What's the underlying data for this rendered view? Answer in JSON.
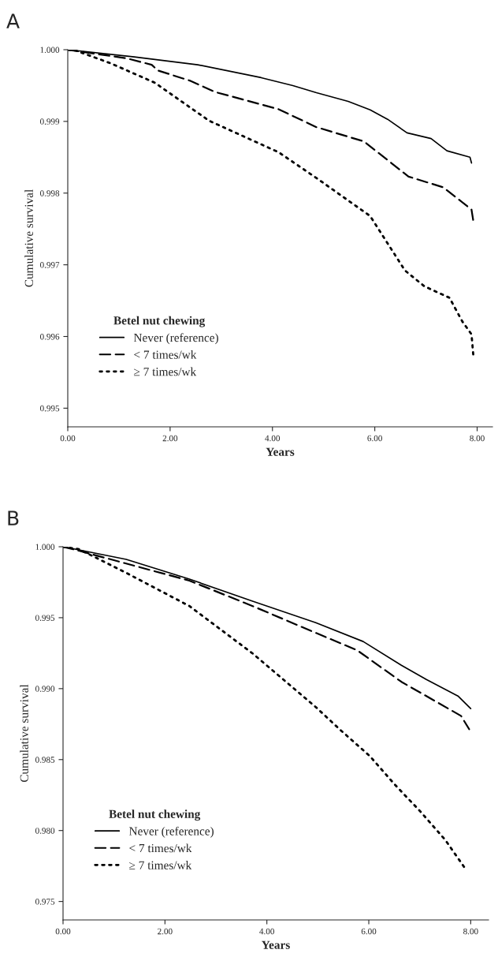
{
  "chart_data": [
    {
      "type": "line",
      "title": "A",
      "xlabel": "Years",
      "ylabel": "Cumulative survival",
      "legend_title": "Betel nut chewing",
      "legend": "bottom left",
      "grid": false,
      "xlim": [
        0,
        8.3
      ],
      "xticks": [
        {
          "value": 0,
          "label": "0.00"
        },
        {
          "value": 2,
          "label": "2.00"
        },
        {
          "value": 4,
          "label": "4.00"
        },
        {
          "value": 6,
          "label": "6.00"
        },
        {
          "value": 8,
          "label": "8.00"
        }
      ],
      "ylim": [
        0.99474,
        1.0
      ],
      "yticks": [
        {
          "value": 1.0,
          "label": "1.000"
        },
        {
          "value": 0.999,
          "label": "0.999"
        },
        {
          "value": 0.998,
          "label": "0.998"
        },
        {
          "value": 0.997,
          "label": "0.997"
        },
        {
          "value": 0.996,
          "label": "0.996"
        },
        {
          "value": 0.995,
          "label": "0.995"
        }
      ],
      "series": [
        {
          "name": "Never (reference)",
          "color": "#000000",
          "line_style": "solid",
          "x": [
            0,
            1.3,
            2.54,
            3.78,
            4.4,
            4.86,
            5.48,
            5.91,
            6.25,
            6.63,
            7.1,
            7.41,
            7.86,
            7.89
          ],
          "values": [
            1.0,
            0.9999,
            0.99979,
            0.99961,
            0.9995,
            0.9994,
            0.99928,
            0.99916,
            0.99903,
            0.99884,
            0.99876,
            0.99859,
            0.9985,
            0.99842
          ]
        },
        {
          "name": "< 7 times/wk",
          "color": "#000000",
          "line_style": "dashed",
          "x": [
            0,
            0.09,
            1.15,
            1.64,
            1.76,
            2.38,
            2.88,
            4.12,
            4.86,
            5.79,
            6.66,
            7.34,
            7.89,
            7.93
          ],
          "values": [
            1.0,
            0.99999,
            0.99988,
            0.99979,
            0.99971,
            0.99957,
            0.99941,
            0.99917,
            0.99892,
            0.99872,
            0.99823,
            0.99808,
            0.99777,
            0.99759
          ]
        },
        {
          "name": "≥ 7 times/wk",
          "color": "#000000",
          "line_style": "dotted",
          "x": [
            0,
            0.15,
            0.84,
            1.7,
            2.76,
            4.12,
            4.86,
            5.91,
            6.59,
            6.97,
            7.46,
            7.71,
            7.89,
            7.93
          ],
          "values": [
            1.0,
            0.99999,
            0.99981,
            0.99954,
            0.99901,
            0.99857,
            0.99821,
            0.99768,
            0.99692,
            0.9967,
            0.99654,
            0.99621,
            0.99603,
            0.9957
          ]
        }
      ]
    },
    {
      "type": "line",
      "title": "B",
      "xlabel": "Years",
      "ylabel": "Cumulative survival",
      "legend_title": "Betel nut chewing",
      "legend": "bottom left",
      "grid": false,
      "xlim": [
        0,
        8.35
      ],
      "xticks": [
        {
          "value": 0,
          "label": "0.00"
        },
        {
          "value": 2,
          "label": "2.00"
        },
        {
          "value": 4,
          "label": "4.00"
        },
        {
          "value": 6,
          "label": "6.00"
        },
        {
          "value": 8,
          "label": "8.00"
        }
      ],
      "ylim": [
        0.9737,
        1.0
      ],
      "yticks": [
        {
          "value": 1.0,
          "label": "1.000"
        },
        {
          "value": 0.995,
          "label": "0.995"
        },
        {
          "value": 0.99,
          "label": "0.990"
        },
        {
          "value": 0.985,
          "label": "0.985"
        },
        {
          "value": 0.98,
          "label": "0.980"
        },
        {
          "value": 0.975,
          "label": "0.975"
        }
      ],
      "series": [
        {
          "name": "Never (reference)",
          "color": "#000000",
          "line_style": "solid",
          "x": [
            0,
            1.24,
            2.48,
            3.72,
            4.96,
            5.89,
            6.64,
            7.13,
            7.75,
            8.0
          ],
          "values": [
            1.0,
            0.99911,
            0.99772,
            0.99616,
            0.99465,
            0.99332,
            0.99165,
            0.99065,
            0.98948,
            0.98859
          ]
        },
        {
          "name": "< 7 times/wk",
          "color": "#000000",
          "line_style": "dashed",
          "x": [
            0,
            0.31,
            2.48,
            3.72,
            4.96,
            5.77,
            6.64,
            7.81,
            7.97
          ],
          "values": [
            1.0,
            0.99972,
            0.99761,
            0.99582,
            0.99393,
            0.99271,
            0.99048,
            0.98808,
            0.98714
          ]
        },
        {
          "name": "≥ 7 times/wk",
          "color": "#000000",
          "line_style": "dotted",
          "x": [
            0,
            0.31,
            1.24,
            2.48,
            3.72,
            4.96,
            5.46,
            6.02,
            6.51,
            7.01,
            7.5,
            7.91
          ],
          "values": [
            1.0,
            0.99983,
            0.99816,
            0.99582,
            0.99248,
            0.9887,
            0.98703,
            0.98525,
            0.98324,
            0.98135,
            0.97934,
            0.97723
          ]
        }
      ]
    }
  ]
}
